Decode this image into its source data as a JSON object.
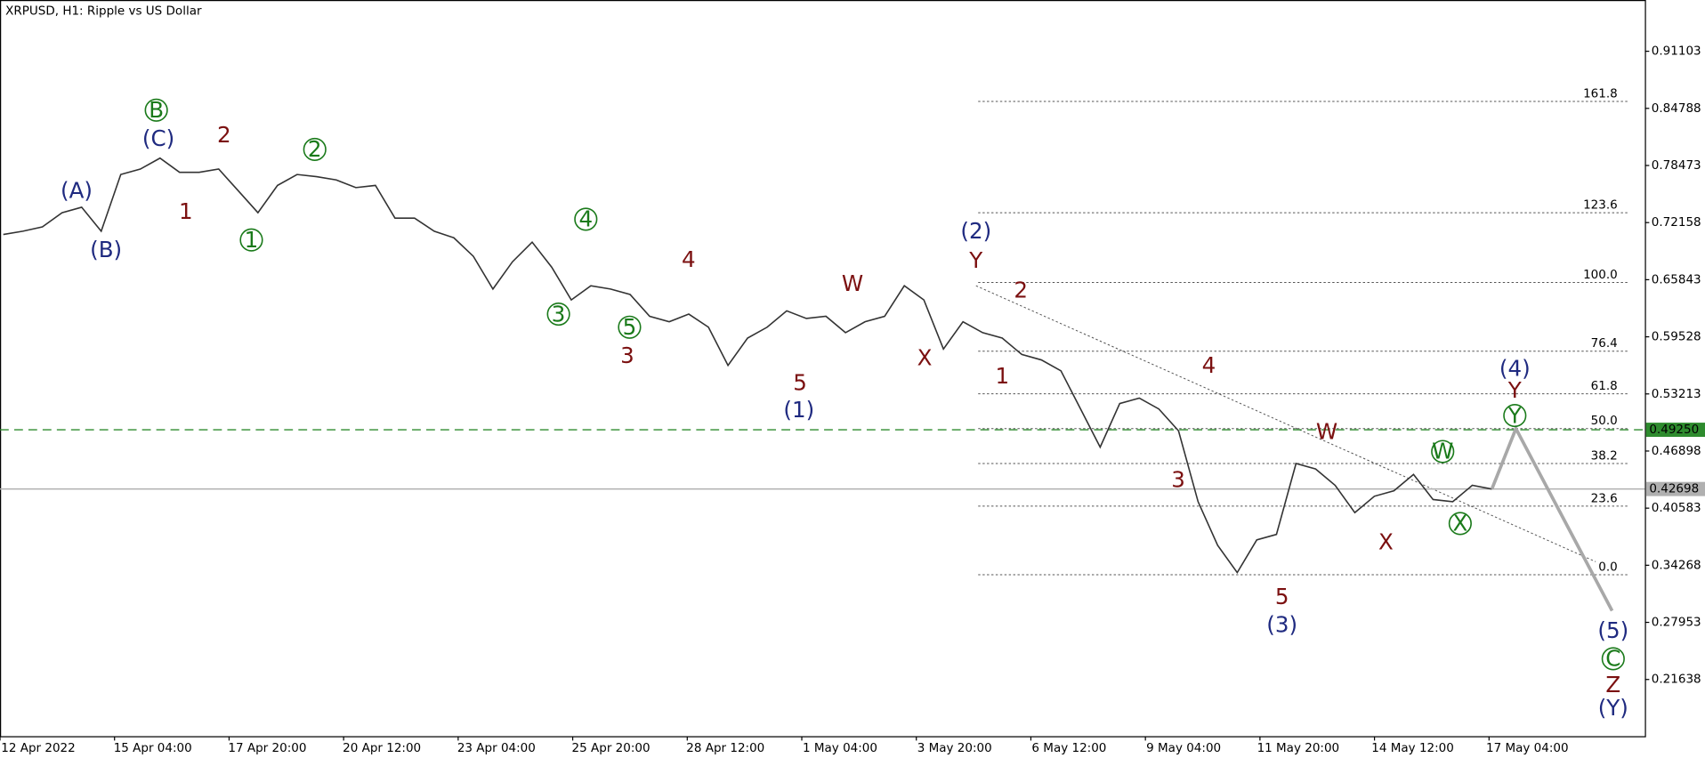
{
  "chart_data": {
    "type": "line",
    "title": "XRPUSD, H1:  Ripple vs US Dollar",
    "ylim": [
      0.15367,
      0.96771
    ],
    "yticks": [
      0.91103,
      0.84788,
      0.78473,
      0.72158,
      0.65843,
      0.59528,
      0.53213,
      0.46898,
      0.40583,
      0.34268,
      0.27953,
      0.21638
    ],
    "x_labels": [
      "12 Apr 2022",
      "15 Apr 04:00",
      "17 Apr 20:00",
      "20 Apr 12:00",
      "23 Apr 04:00",
      "25 Apr 20:00",
      "28 Apr 12:00",
      "1 May 04:00",
      "3 May 20:00",
      "6 May 12:00",
      "9 May 04:00",
      "11 May 20:00",
      "14 May 12:00",
      "17 May 04:00"
    ],
    "series": [
      {
        "color": "#333333",
        "values": [
          0.7084,
          0.712,
          0.7169,
          0.7325,
          0.7386,
          0.712,
          0.7747,
          0.7808,
          0.7928,
          0.7772,
          0.7772,
          0.7808,
          0.7567,
          0.7325,
          0.7627,
          0.7747,
          0.7723,
          0.7687,
          0.7603,
          0.7627,
          0.7265,
          0.7265,
          0.712,
          0.7048,
          0.6843,
          0.6481,
          0.6783,
          0.7,
          0.6722,
          0.6361,
          0.6517,
          0.6481,
          0.6421,
          0.618,
          0.6119,
          0.6204,
          0.6059,
          0.5637,
          0.5938,
          0.6059,
          0.624,
          0.6156,
          0.618,
          0.5999,
          0.6119,
          0.618,
          0.6517,
          0.6361,
          0.5818,
          0.6119,
          0.5999,
          0.5938,
          0.5758,
          0.5697,
          0.5577,
          0.5155,
          0.4732,
          0.5215,
          0.5275,
          0.5155,
          0.4913,
          0.413,
          0.3647,
          0.3346,
          0.3707,
          0.3768,
          0.4552,
          0.4491,
          0.431,
          0.4009,
          0.419,
          0.425,
          0.4431,
          0.4154,
          0.413,
          0.431,
          0.42698
        ]
      }
    ],
    "current_price": {
      "value": 0.42698,
      "label": "0.42698",
      "color": "#b0b0b0"
    },
    "target_line": {
      "value": 0.4925,
      "label": "0.49250",
      "color": "#2e8b2e"
    },
    "fib_levels": [
      {
        "label": "161.8",
        "price": 0.8556
      },
      {
        "label": "123.6",
        "price": 0.7325
      },
      {
        "label": "100.0",
        "price": 0.6554
      },
      {
        "label": "76.4",
        "price": 0.5794
      },
      {
        "label": "61.8",
        "price": 0.5323
      },
      {
        "label": "50.0",
        "price": 0.4938
      },
      {
        "label": "38.2",
        "price": 0.4552
      },
      {
        "label": "23.6",
        "price": 0.4081
      },
      {
        "label": "0.0",
        "price": 0.3322
      }
    ],
    "projection": {
      "color": "#a8a8a8",
      "values": [
        0.42698,
        0.4938,
        0.2924
      ]
    },
    "annotations": [
      {
        "text": "(A)",
        "color": "#1f2a80"
      },
      {
        "text": "(B)",
        "color": "#1f2a80"
      },
      {
        "text": "B",
        "color": "#1a7a1a",
        "circled": true
      },
      {
        "text": "(C)",
        "color": "#1f2a80"
      },
      {
        "text": "2",
        "color": "#7b1010"
      },
      {
        "text": "1",
        "color": "#7b1010"
      },
      {
        "text": "1",
        "color": "#1a7a1a",
        "circled": true
      },
      {
        "text": "2",
        "color": "#1a7a1a",
        "circled": true
      },
      {
        "text": "4",
        "color": "#1a7a1a",
        "circled": true
      },
      {
        "text": "3",
        "color": "#1a7a1a",
        "circled": true
      },
      {
        "text": "5",
        "color": "#1a7a1a",
        "circled": true
      },
      {
        "text": "3",
        "color": "#7b1010"
      },
      {
        "text": "4",
        "color": "#7b1010"
      },
      {
        "text": "W",
        "color": "#7b1010"
      },
      {
        "text": "X",
        "color": "#7b1010"
      },
      {
        "text": "5",
        "color": "#7b1010"
      },
      {
        "text": "(1)",
        "color": "#1f2a80"
      },
      {
        "text": "(2)",
        "color": "#1f2a80"
      },
      {
        "text": "Y",
        "color": "#7b1010"
      },
      {
        "text": "2",
        "color": "#7b1010"
      },
      {
        "text": "1",
        "color": "#7b1010"
      },
      {
        "text": "4",
        "color": "#7b1010"
      },
      {
        "text": "3",
        "color": "#7b1010"
      },
      {
        "text": "W",
        "color": "#7b1010"
      },
      {
        "text": "5",
        "color": "#7b1010"
      },
      {
        "text": "(3)",
        "color": "#1f2a80"
      },
      {
        "text": "X",
        "color": "#7b1010"
      },
      {
        "text": "W",
        "color": "#1a7a1a",
        "circled": true
      },
      {
        "text": "X",
        "color": "#1a7a1a",
        "circled": true
      },
      {
        "text": "(4)",
        "color": "#1f2a80"
      },
      {
        "text": "Y",
        "color": "#7b1010"
      },
      {
        "text": "Y",
        "color": "#1a7a1a",
        "circled": true
      },
      {
        "text": "(5)",
        "color": "#1f2a80"
      },
      {
        "text": "C",
        "color": "#1a7a1a",
        "circled": true
      },
      {
        "text": "Z",
        "color": "#7b1010"
      },
      {
        "text": "(Y)",
        "color": "#1f2a80"
      }
    ]
  }
}
